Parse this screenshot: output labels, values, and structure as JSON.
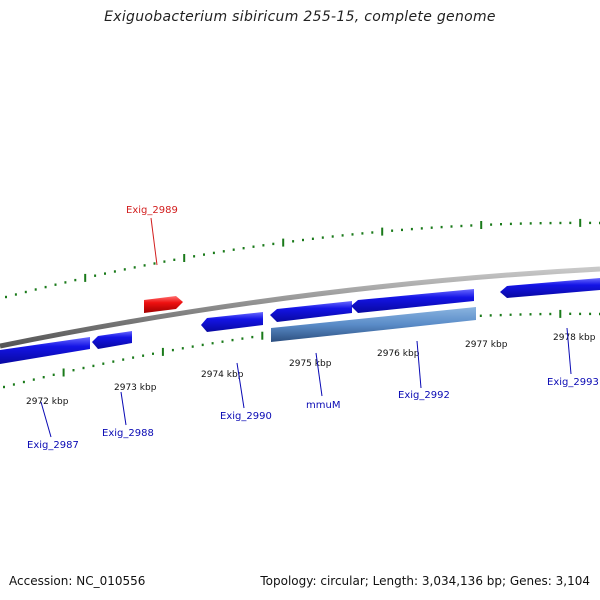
{
  "title": "Exiguobacterium sibiricum 255-15, complete genome",
  "footer": {
    "accession": "Accession: NC_010556",
    "summary": "Topology: circular; Length: 3,034,136 bp; Genes: 3,104"
  },
  "colors": {
    "gene_label": "#0a0ab4",
    "highlight_label": "#d21e1e",
    "gene_fill": "#1414e6",
    "highlight_fill": "#ee1010",
    "cds_fill": "#5a8cc8",
    "tick": "#1a7a1a",
    "backbone": "#8a8a8a"
  },
  "ticks": [
    {
      "label": "2972 kbp"
    },
    {
      "label": "2973 kbp"
    },
    {
      "label": "2974 kbp"
    },
    {
      "label": "2975 kbp"
    },
    {
      "label": "2976 kbp"
    },
    {
      "label": "2977 kbp"
    },
    {
      "label": "2978 kbp"
    }
  ],
  "genes": [
    {
      "label": "Exig_2987",
      "highlight": false
    },
    {
      "label": "Exig_2988",
      "highlight": false
    },
    {
      "label": "Exig_2989",
      "highlight": true
    },
    {
      "label": "Exig_2990",
      "highlight": false
    },
    {
      "label": "mmuM",
      "highlight": false
    },
    {
      "label": "Exig_2992",
      "highlight": false
    },
    {
      "label": "Exig_2993",
      "highlight": false
    }
  ]
}
